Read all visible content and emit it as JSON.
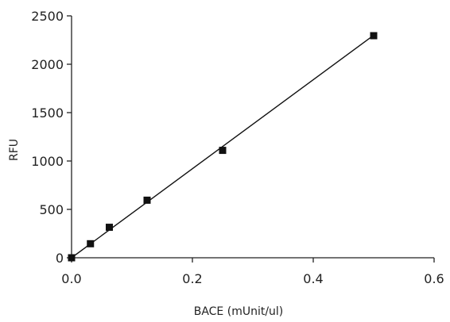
{
  "chart_data": {
    "type": "scatter",
    "title": "",
    "xlabel": "BACE (mUnit/ul)",
    "ylabel": "RFU",
    "xlim": [
      0,
      0.6
    ],
    "ylim": [
      0,
      2500
    ],
    "xticks": [
      0.0,
      0.2,
      0.4,
      0.6
    ],
    "xtick_labels": [
      "0.0",
      "0.2",
      "0.4",
      "0.6"
    ],
    "yticks": [
      0,
      500,
      1000,
      1500,
      2000,
      2500
    ],
    "ytick_labels": [
      "0",
      "500",
      "1000",
      "1500",
      "2000",
      "2500"
    ],
    "grid": false,
    "legend": "none",
    "series": [
      {
        "marker": "square",
        "color": "#111111",
        "x": [
          0.0,
          0.03125,
          0.0625,
          0.125,
          0.25,
          0.5
        ],
        "y": [
          0,
          145,
          315,
          595,
          1110,
          2295
        ]
      }
    ],
    "fit_line": {
      "type": "linear",
      "color": "#111111",
      "x_range": [
        0.0,
        0.5
      ],
      "slope": 4600,
      "intercept": 0
    }
  }
}
